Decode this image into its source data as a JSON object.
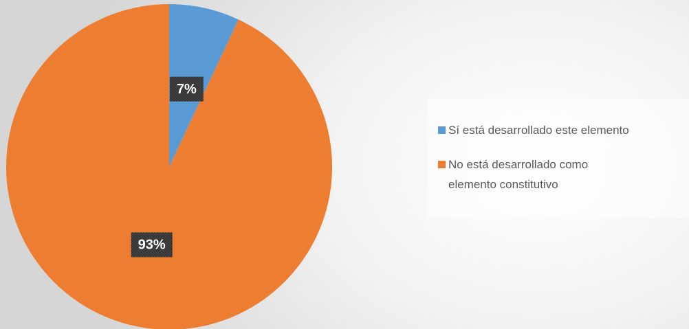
{
  "chart_data": {
    "type": "pie",
    "categories": [
      "Sí está desarrollado este elemento",
      "No está desarrollado como elemento constitutivo"
    ],
    "values": [
      7,
      93
    ],
    "value_labels": [
      "7%",
      "93%"
    ],
    "colors": [
      "#5b9bd5",
      "#ed7d31"
    ],
    "legend": "right"
  }
}
